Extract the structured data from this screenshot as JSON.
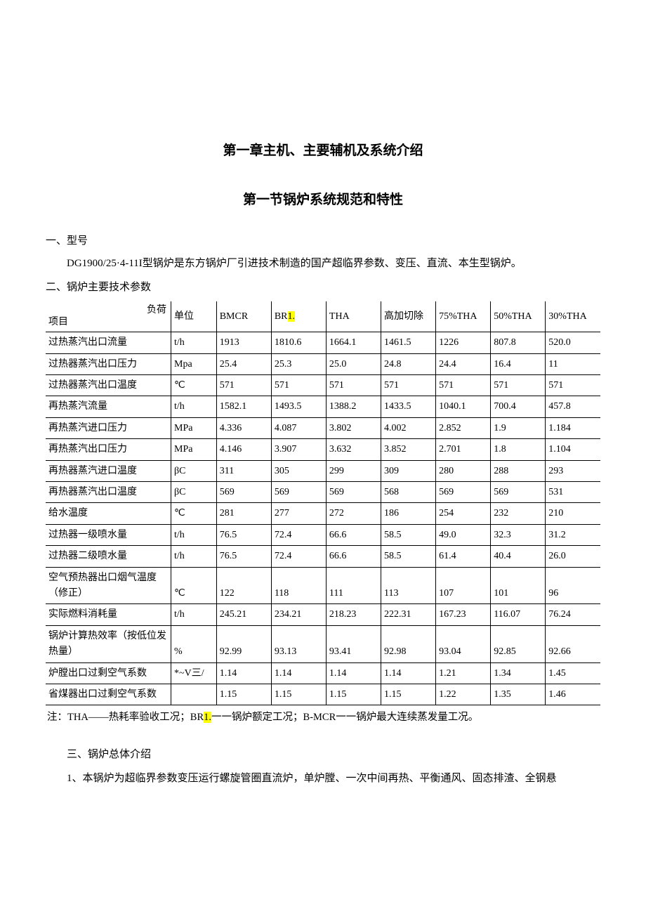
{
  "chapter_title": "第一章主机、主要辅机及系统介绍",
  "section_title": "第一节锅炉系统规范和特性",
  "heading_model": "一、型号",
  "model_text": "DG1900/25·4-11I型锅炉是东方锅炉厂引进技术制造的国产超临界参数、变压、直流、本生型锅炉。",
  "heading_params": "二、锅炉主要技术参数",
  "table": {
    "header_top": "负荷",
    "header_bottom": "项目",
    "cols": [
      "单位",
      "BMCR",
      {
        "pre": "BR",
        "hl": "1.",
        "post": ""
      },
      "THA",
      "高加切除",
      "75%THA",
      "50%THA",
      "30%THA"
    ],
    "rows": [
      {
        "name": "过热蒸汽出口流量",
        "unit": "t/h",
        "v": [
          "1913",
          "1810.6",
          "1664.1",
          "1461.5",
          "1226",
          "807.8",
          "520.0"
        ]
      },
      {
        "name": "过热器蒸汽出口压力",
        "unit": "Mpa",
        "v": [
          "25.4",
          "25.3",
          "25.0",
          "24.8",
          "24.4",
          "16.4",
          "11"
        ]
      },
      {
        "name": "过热器蒸汽出口温度",
        "unit": "℃",
        "v": [
          "571",
          "571",
          "571",
          "571",
          "571",
          "571",
          "571"
        ]
      },
      {
        "name": "再热蒸汽流量",
        "unit": "t/h",
        "v": [
          "1582.1",
          "1493.5",
          "1388.2",
          "1433.5",
          "1040.1",
          "700.4",
          "457.8"
        ]
      },
      {
        "name": "再热蒸汽进口压力",
        "unit": "MPa",
        "v": [
          "4.336",
          "4.087",
          "3.802",
          "4.002",
          "2.852",
          "1.9",
          "1.184"
        ]
      },
      {
        "name": "再热蒸汽出口压力",
        "unit": "MPa",
        "v": [
          "4.146",
          "3.907",
          "3.632",
          "3.852",
          "2.701",
          "1.8",
          "1.104"
        ]
      },
      {
        "name": "再热器蒸汽进口温度",
        "unit": "βC",
        "v": [
          "311",
          "305",
          "299",
          "309",
          "280",
          "288",
          "293"
        ]
      },
      {
        "name": "再热器蒸汽出口温度",
        "unit": "βC",
        "v": [
          "569",
          "569",
          "569",
          "568",
          "569",
          "569",
          "531"
        ]
      },
      {
        "name": "给水温度",
        "unit": "℃",
        "v": [
          "281",
          "277",
          "272",
          "186",
          "254",
          "232",
          "210"
        ]
      },
      {
        "name": "过热器一级喷水量",
        "unit": "t/h",
        "v": [
          "76.5",
          "72.4",
          "66.6",
          "58.5",
          "49.0",
          "32.3",
          "31.2"
        ]
      },
      {
        "name": "过热器二级喷水量",
        "unit": "t/h",
        "v": [
          "76.5",
          "72.4",
          "66.6",
          "58.5",
          "61.4",
          "40.4",
          "26.0"
        ]
      },
      {
        "name": "空气预热器出口烟气温度（修正）",
        "unit": "℃",
        "v": [
          "122",
          "118",
          "111",
          "113",
          "107",
          "101",
          "96"
        ]
      },
      {
        "name": "实际燃料消耗量",
        "unit": "t/h",
        "v": [
          "245.21",
          "234.21",
          "218.23",
          "222.31",
          "167.23",
          "116.07",
          "76.24"
        ]
      },
      {
        "name": "锅炉计算热效率（按低位发热量）",
        "unit": "%",
        "v": [
          "92.99",
          "93.13",
          "93.41",
          "92.98",
          "93.04",
          "92.85",
          "92.66"
        ]
      },
      {
        "name": "炉膛出口过剩空气系数",
        "unit": "*~V三/",
        "v": [
          "1.14",
          "1.14",
          "1.14",
          "1.14",
          "1.21",
          "1.34",
          "1.45"
        ]
      },
      {
        "name": "省煤器出口过剩空气系数",
        "unit": "",
        "v": [
          "1.15",
          "1.15",
          "1.15",
          "1.15",
          "1.22",
          "1.35",
          "1.46"
        ]
      }
    ]
  },
  "footnote_pre": "注：THA——热耗率验收工况；BR",
  "footnote_hl": "1.",
  "footnote_post": "一一锅炉额定工况；B-MCR一一锅炉最大连续蒸发量工况。",
  "heading_overview": "三、锅炉总体介绍",
  "overview_item1": "1、本锅炉为超临界参数变压运行螺旋管圈直流炉，单炉膛、一次中间再热、平衡通风、固态排渣、全钢悬"
}
